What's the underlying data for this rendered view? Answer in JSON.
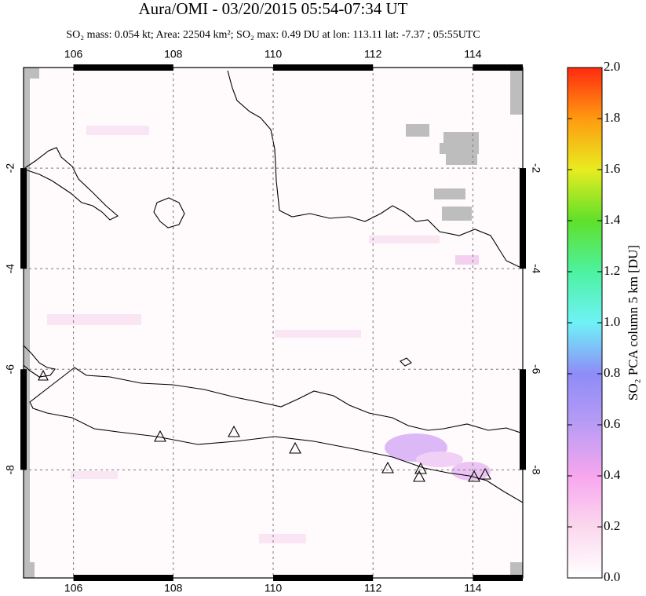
{
  "title": "Aura/OMI - 03/20/2015 05:54-07:34 UT",
  "subtitle": "SO₂ mass: 0.054 kt; Area: 22504 km²; SO₂ max: 0.49 DU at lon: 113.11 lat: -7.37 ; 05:55UTC",
  "map": {
    "xlim": [
      105,
      115
    ],
    "ylim": [
      -10.15,
      0
    ],
    "xticks": [
      106,
      108,
      110,
      112,
      114
    ],
    "yticks": [
      -2,
      -4,
      -6,
      -8
    ],
    "grid": true
  },
  "colorbar": {
    "label": "SO₂ PCA column 5 km [DU]",
    "lim": [
      0,
      2
    ],
    "ticks": [
      {
        "value": 0,
        "label": "0.0"
      },
      0.2,
      0.4,
      0.6,
      0.8,
      {
        "value": 1,
        "label": "1.0"
      },
      1.2,
      1.4,
      1.6,
      1.8,
      {
        "value": 2,
        "label": "2.0"
      }
    ]
  }
}
